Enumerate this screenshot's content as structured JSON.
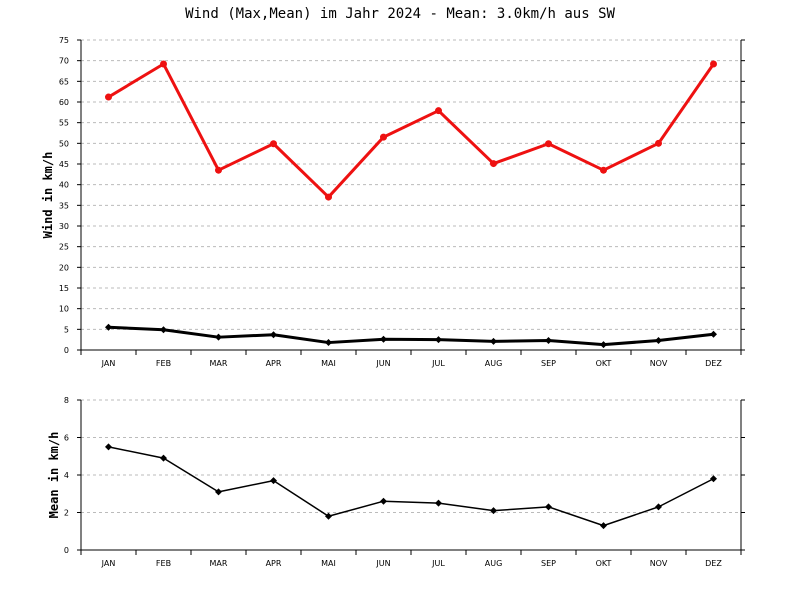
{
  "title": "Wind (Max,Mean) im Jahr 2024 - Mean: 3.0km/h aus SW",
  "colors": {
    "max": "#ee1111",
    "mean": "#000000",
    "grid": "#bbbbbb"
  },
  "chart_data": [
    {
      "type": "line",
      "title": "Wind (Max,Mean) im Jahr 2024 - Mean: 3.0km/h aus SW",
      "xlabel": "",
      "ylabel": "Wind in km/h",
      "categories": [
        "JAN",
        "FEB",
        "MAR",
        "APR",
        "MAI",
        "JUN",
        "JUL",
        "AUG",
        "SEP",
        "OKT",
        "NOV",
        "DEZ"
      ],
      "yticks": [
        0,
        5,
        10,
        15,
        20,
        25,
        30,
        35,
        40,
        45,
        50,
        55,
        60,
        65,
        70,
        75
      ],
      "ylim": [
        0,
        75
      ],
      "grid": true,
      "series": [
        {
          "values": [
            61.2,
            69.2,
            43.5,
            49.9,
            37.0,
            51.5,
            57.9,
            45.1,
            49.9,
            43.5,
            50.0,
            69.2
          ],
          "color": "#ee1111",
          "marker": "circle"
        },
        {
          "values": [
            5.5,
            4.9,
            3.1,
            3.7,
            1.8,
            2.6,
            2.5,
            2.1,
            2.3,
            1.3,
            2.3,
            3.8
          ],
          "color": "#000000",
          "marker": "diamond"
        }
      ]
    },
    {
      "type": "line",
      "title": "",
      "xlabel": "",
      "ylabel": "Mean in km/h",
      "categories": [
        "JAN",
        "FEB",
        "MAR",
        "APR",
        "MAI",
        "JUN",
        "JUL",
        "AUG",
        "SEP",
        "OKT",
        "NOV",
        "DEZ"
      ],
      "yticks": [
        0,
        2,
        4,
        6,
        8
      ],
      "ylim": [
        0,
        8
      ],
      "grid": true,
      "series": [
        {
          "values": [
            5.5,
            4.9,
            3.1,
            3.7,
            1.8,
            2.6,
            2.5,
            2.1,
            2.3,
            1.3,
            2.3,
            3.8
          ],
          "color": "#000000",
          "marker": "diamond"
        }
      ]
    }
  ]
}
